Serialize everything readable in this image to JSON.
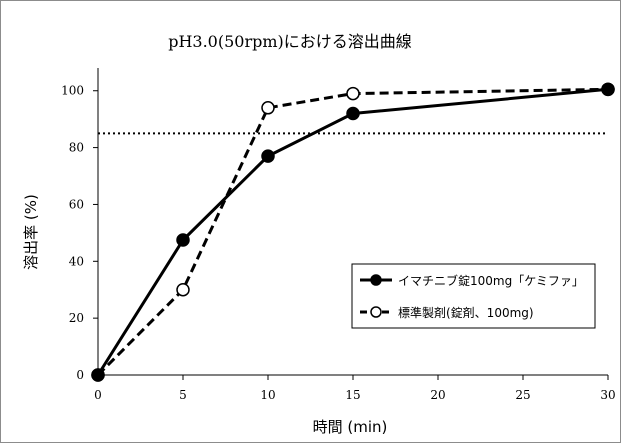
{
  "chart_data": {
    "type": "line",
    "title": "pH3.0(50rpm)における溶出曲線",
    "xlabel": "時間 (min)",
    "ylabel": "溶出率 (%)",
    "xlim": [
      0,
      30
    ],
    "ylim": [
      0,
      108
    ],
    "x_ticks": [
      "0",
      "5",
      "10",
      "15",
      "20",
      "25",
      "30"
    ],
    "y_ticks": [
      "0",
      "20",
      "40",
      "60",
      "80",
      "100"
    ],
    "reference_line": {
      "y": 85,
      "style": "dotted"
    },
    "grid": false,
    "legend_position": "right",
    "series": [
      {
        "name": "イマチニブ錠100mg「ケミファ」",
        "marker": "filled-circle",
        "line": "solid",
        "x": [
          0,
          5,
          10,
          15,
          30
        ],
        "y": [
          0,
          47.5,
          77,
          92,
          100.5
        ]
      },
      {
        "name": "標準製剤(錠剤、100mg)",
        "marker": "open-circle",
        "line": "dashed",
        "x": [
          0,
          5,
          10,
          15,
          30
        ],
        "y": [
          0,
          30,
          94,
          99,
          100.5
        ]
      }
    ]
  }
}
